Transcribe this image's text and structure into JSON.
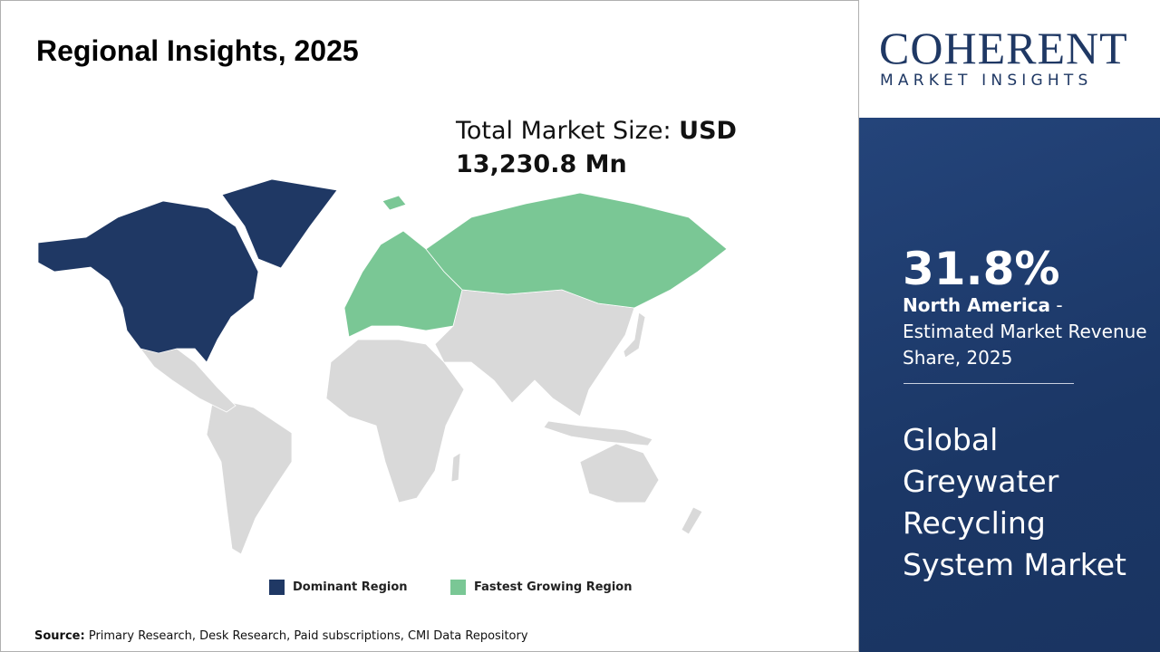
{
  "header": {
    "title": "Regional Insights, 2025"
  },
  "logo": {
    "name": "COHERENT",
    "tagline": "MARKET INSIGHTS"
  },
  "market_size": {
    "label": "Total Market Size:",
    "value": "USD 13,230.8 Mn"
  },
  "legend": [
    {
      "label": "Dominant Region",
      "color": "#1f3864"
    },
    {
      "label": "Fastest Growing Region",
      "color": "#7ac795"
    }
  ],
  "highlight": {
    "share": "31.8%",
    "region": "North America",
    "description": "- Estimated Market Revenue Share, 2025"
  },
  "market_name": "Global Greywater Recycling System Market",
  "source": {
    "label": "Source:",
    "text": "Primary Research, Desk Research, Paid subscriptions, CMI Data Repository"
  }
}
